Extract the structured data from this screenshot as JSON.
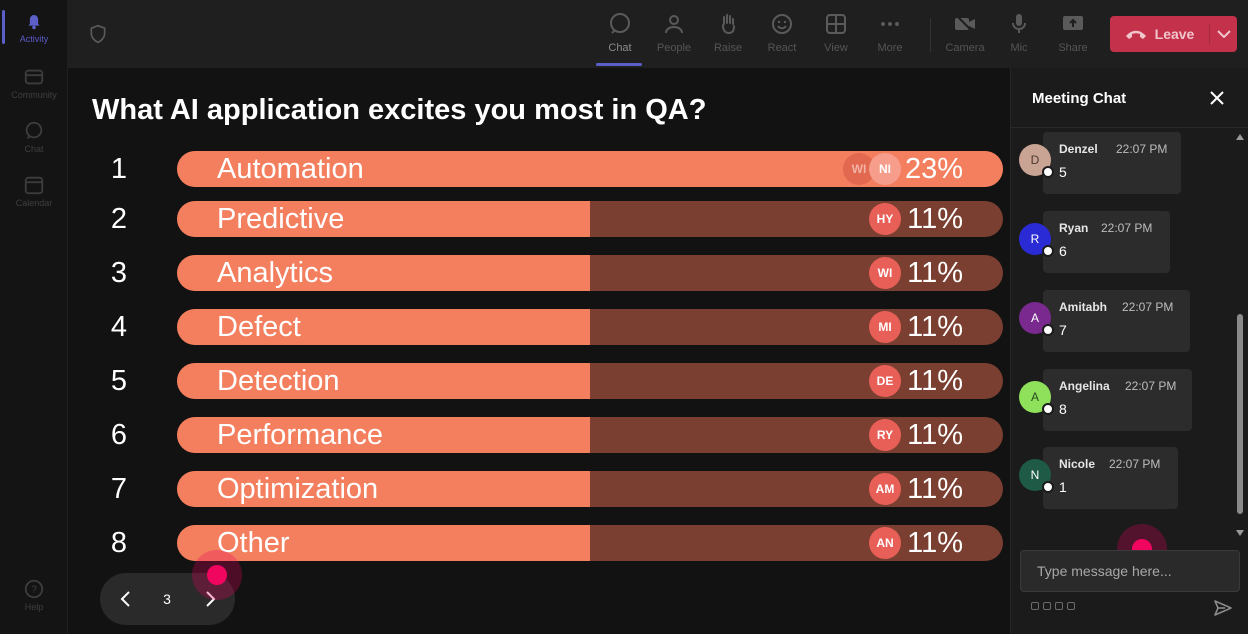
{
  "rail": {
    "items": [
      {
        "label": "Activity",
        "icon": "bell-icon"
      },
      {
        "label": "Community",
        "icon": "community-icon"
      },
      {
        "label": "Chat",
        "icon": "chat-icon"
      },
      {
        "label": "Calendar",
        "icon": "calendar-icon"
      },
      {
        "label": "Help",
        "icon": "help-icon"
      }
    ]
  },
  "toolbar": {
    "chat": "Chat",
    "people": "People",
    "raise": "Raise",
    "react": "React",
    "view": "View",
    "more": "More",
    "camera": "Camera",
    "mic": "Mic",
    "share": "Share",
    "leave": "Leave"
  },
  "poll": {
    "title": "What AI application excites you most in QA?",
    "rows": [
      {
        "num": "1",
        "label": "Automation",
        "pct": "23%",
        "fraction": 1.0,
        "avatars": [
          "WI",
          "NI"
        ]
      },
      {
        "num": "2",
        "label": "Predictive",
        "pct": "11%",
        "fraction": 0.5,
        "avatars": [
          "HY"
        ]
      },
      {
        "num": "3",
        "label": "Analytics",
        "pct": "11%",
        "fraction": 0.5,
        "avatars": [
          "WI"
        ]
      },
      {
        "num": "4",
        "label": "Defect",
        "pct": "11%",
        "fraction": 0.5,
        "avatars": [
          "MI"
        ]
      },
      {
        "num": "5",
        "label": "Detection",
        "pct": "11%",
        "fraction": 0.5,
        "avatars": [
          "DE"
        ]
      },
      {
        "num": "6",
        "label": "Performance",
        "pct": "11%",
        "fraction": 0.5,
        "avatars": [
          "RY"
        ]
      },
      {
        "num": "7",
        "label": "Optimization",
        "pct": "11%",
        "fraction": 0.5,
        "avatars": [
          "AM"
        ]
      },
      {
        "num": "8",
        "label": "Other",
        "pct": "11%",
        "fraction": 0.5,
        "avatars": [
          "AN"
        ]
      }
    ],
    "pager": {
      "page": "3"
    }
  },
  "chat": {
    "title": "Meeting Chat",
    "messages": [
      {
        "initial": "D",
        "name": "Denzel",
        "time": "22:07 PM",
        "text": "5",
        "avatar_color": "#c9a393",
        "avatar_text": "#4a3a33"
      },
      {
        "initial": "R",
        "name": "Ryan",
        "time": "22:07 PM",
        "text": "6",
        "avatar_color": "#2b2bd6",
        "avatar_text": "#ffffff"
      },
      {
        "initial": "A",
        "name": "Amitabh",
        "time": "22:07 PM",
        "text": "7",
        "avatar_color": "#7a2a8f",
        "avatar_text": "#ffffff"
      },
      {
        "initial": "A",
        "name": "Angelina",
        "time": "22:07 PM",
        "text": "8",
        "avatar_color": "#8fe05a",
        "avatar_text": "#2b4a1f"
      },
      {
        "initial": "N",
        "name": "Nicole",
        "time": "22:07 PM",
        "text": "1",
        "avatar_color": "#1e5a46",
        "avatar_text": "#ffffff"
      }
    ],
    "input_placeholder": "Type message here..."
  },
  "colors": {
    "bar_fill": "#f37f5f",
    "bar_track": "#7a3f30",
    "leave": "#c4314b",
    "accent": "#5b5fc7"
  }
}
